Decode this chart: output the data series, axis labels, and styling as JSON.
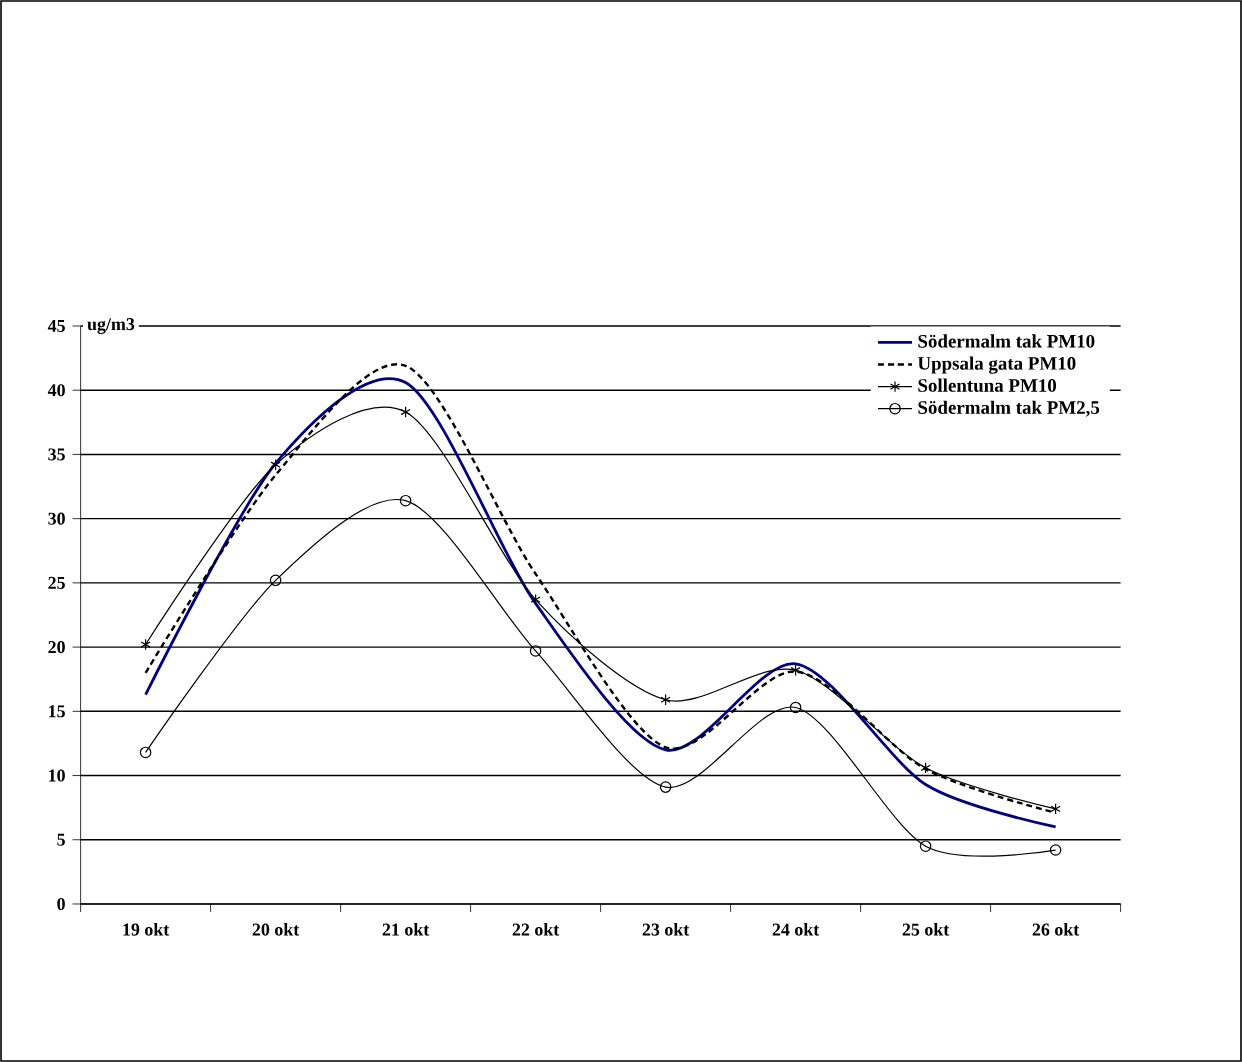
{
  "chart_data": {
    "type": "line",
    "ylabel": "ug/m3",
    "categories": [
      "19 okt",
      "20 okt",
      "21 okt",
      "22 okt",
      "23 okt",
      "24 okt",
      "25 okt",
      "26 okt"
    ],
    "series": [
      {
        "name": "Södermalm tak PM10",
        "color": "#000080",
        "line_style": "solid",
        "marker": "none",
        "values": [
          16.3,
          34.3,
          40.6,
          23.4,
          12.0,
          18.7,
          9.3,
          6.0
        ]
      },
      {
        "name": "Uppsala gata PM10",
        "color": "#000000",
        "line_style": "dotted",
        "marker": "none",
        "values": [
          18.0,
          33.4,
          41.9,
          25.7,
          12.2,
          18.1,
          10.5,
          7.1
        ]
      },
      {
        "name": "Sollentuna PM10",
        "color": "#000000",
        "line_style": "solid",
        "marker": "cross",
        "values": [
          20.2,
          34.2,
          38.3,
          23.7,
          15.9,
          18.2,
          10.6,
          7.4
        ]
      },
      {
        "name": "Södermalm tak PM2,5",
        "color": "#000000",
        "line_style": "solid",
        "marker": "circle",
        "values": [
          11.8,
          25.2,
          31.4,
          19.7,
          9.1,
          15.3,
          4.5,
          4.2
        ]
      }
    ],
    "ylim": [
      0,
      45
    ],
    "yticks": [
      0,
      5,
      10,
      15,
      20,
      25,
      30,
      35,
      40,
      45
    ],
    "grid": "y",
    "legend": "top right"
  }
}
